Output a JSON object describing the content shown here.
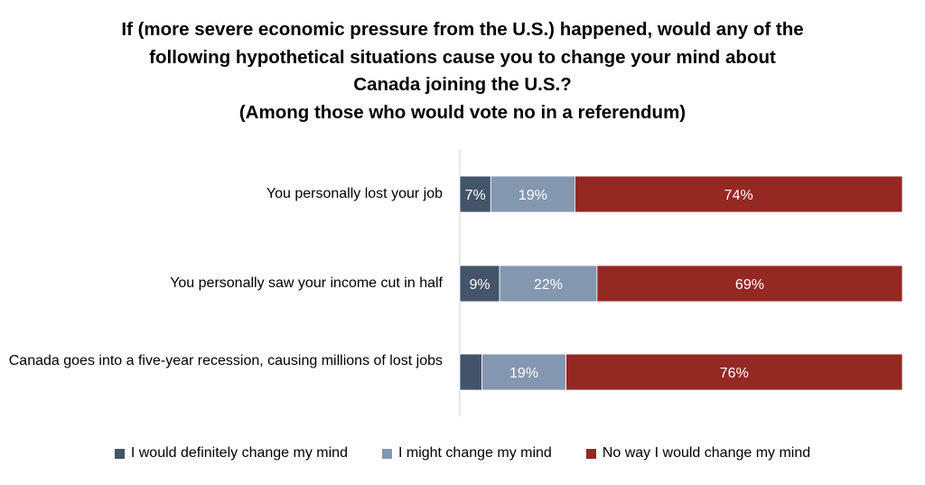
{
  "chart_data": {
    "type": "bar",
    "orientation": "horizontal-stacked-100",
    "title_lines": [
      "If (more severe economic pressure from the U.S.) happened, would any of the",
      "following hypothetical situations cause you to change your mind about",
      "Canada joining the U.S.?",
      "(Among those who would vote no in a referendum)"
    ],
    "categories": [
      "You personally lost your job",
      "You personally saw your income cut in half",
      "Canada goes into a five-year recession, causing millions of lost jobs"
    ],
    "series": [
      {
        "name": "I would definitely change my mind",
        "color": "#44546A",
        "values": [
          7,
          9,
          5
        ],
        "labels": [
          "7%",
          "9%",
          ""
        ]
      },
      {
        "name": "I might change my mind",
        "color": "#8497B0",
        "values": [
          19,
          22,
          19
        ],
        "labels": [
          "19%",
          "22%",
          "19%"
        ]
      },
      {
        "name": "No way I would change my mind",
        "color": "#942823",
        "values": [
          74,
          69,
          76
        ],
        "labels": [
          "74%",
          "69%",
          "76%"
        ]
      }
    ],
    "xlim": [
      0,
      100
    ],
    "grid": false,
    "legend": "bottom"
  }
}
